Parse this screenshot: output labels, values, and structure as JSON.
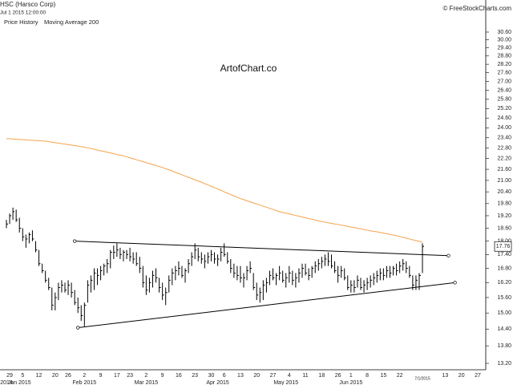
{
  "chart_data": {
    "type": "ohlc",
    "title": "HSC (Harsco Corp)",
    "subtitle": "Jul 1 2015 12:00:00",
    "source": "© FreeStockCharts.com",
    "watermark": "ArtofChart.co",
    "price_name": "Price History",
    "color": "#000000",
    "log_scale": true,
    "grid": false,
    "highlight_label": "7/1/2015",
    "categories": [
      null,
      "29",
      null,
      null,
      null,
      "5",
      null,
      null,
      null,
      null,
      "12",
      null,
      null,
      null,
      null,
      "20",
      null,
      null,
      null,
      "26",
      null,
      null,
      null,
      null,
      "2",
      null,
      null,
      null,
      null,
      "9",
      null,
      null,
      null,
      null,
      "17",
      null,
      null,
      null,
      "23",
      null,
      null,
      null,
      null,
      "2",
      null,
      null,
      null,
      null,
      "9",
      null,
      null,
      null,
      null,
      "16",
      null,
      null,
      null,
      null,
      "23",
      null,
      null,
      null,
      null,
      "30",
      null,
      null,
      null,
      "6",
      null,
      null,
      null,
      null,
      "13",
      null,
      null,
      null,
      null,
      "20",
      null,
      null,
      null,
      null,
      "27",
      null,
      null,
      null,
      null,
      "4",
      null,
      null,
      null,
      null,
      "11",
      null,
      null,
      null,
      null,
      "18",
      null,
      null,
      null,
      null,
      "26",
      null,
      null,
      null,
      "1",
      null,
      null,
      null,
      null,
      "8",
      null,
      null,
      null,
      null,
      "15",
      null,
      null,
      null,
      null,
      "22",
      null,
      null,
      null,
      null,
      null,
      null,
      null,
      null,
      null,
      null,
      null,
      null,
      null,
      "13",
      null,
      null,
      null,
      null,
      "20",
      null,
      null,
      null,
      null,
      "27"
    ],
    "months": [
      "2014",
      null,
      null,
      null,
      "Jan 2015",
      null,
      null,
      null,
      null,
      null,
      null,
      null,
      null,
      null,
      null,
      null,
      null,
      null,
      null,
      null,
      null,
      null,
      null,
      null,
      "Feb 2015",
      null,
      null,
      null,
      null,
      null,
      null,
      null,
      null,
      null,
      null,
      null,
      null,
      null,
      null,
      null,
      null,
      null,
      null,
      "Mar 2015",
      null,
      null,
      null,
      null,
      null,
      null,
      null,
      null,
      null,
      null,
      null,
      null,
      null,
      null,
      null,
      null,
      null,
      null,
      null,
      null,
      null,
      "Apr 2015",
      null,
      null,
      null,
      null,
      null,
      null,
      null,
      null,
      null,
      null,
      null,
      null,
      null,
      null,
      null,
      null,
      null,
      null,
      null,
      null,
      "May 2015",
      null,
      null,
      null,
      null,
      null,
      null,
      null,
      null,
      null,
      null,
      null,
      null,
      null,
      null,
      null,
      null,
      null,
      null,
      null,
      "Jun 2015",
      null,
      null,
      null,
      null,
      null,
      null,
      null,
      null,
      null,
      null,
      null,
      null,
      null,
      null,
      null,
      null,
      null,
      null,
      null,
      null,
      null,
      null,
      null,
      null,
      null,
      null,
      null,
      null,
      null,
      null,
      null,
      null,
      null,
      null,
      null,
      null,
      null,
      null,
      null
    ],
    "high": [
      19.0,
      19.3,
      19.6,
      19.5,
      19.1,
      18.6,
      18.3,
      18.4,
      18.5,
      18.0,
      17.6,
      17.0,
      16.7,
      16.4,
      16.0,
      15.8,
      16.2,
      16.3,
      16.2,
      16.3,
      16.2,
      15.9,
      15.6,
      15.3,
      15.4,
      16.3,
      16.5,
      16.8,
      16.8,
      16.9,
      17.0,
      17.2,
      17.6,
      17.8,
      17.9,
      17.7,
      17.6,
      17.6,
      17.7,
      17.5,
      17.5,
      17.3,
      16.9,
      16.5,
      16.4,
      16.7,
      16.8,
      16.4,
      16.2,
      16.0,
      16.5,
      16.8,
      16.9,
      17.1,
      16.9,
      16.8,
      17.2,
      17.5,
      17.9,
      17.7,
      17.5,
      17.4,
      17.5,
      17.6,
      17.5,
      17.4,
      17.7,
      17.9,
      17.5,
      17.2,
      17.0,
      16.9,
      16.9,
      16.6,
      16.9,
      17.1,
      16.6,
      16.2,
      16.0,
      16.3,
      16.4,
      16.7,
      16.8,
      16.6,
      16.9,
      16.7,
      16.6,
      16.9,
      16.7,
      16.6,
      16.8,
      17.0,
      17.0,
      16.8,
      16.9,
      17.1,
      17.2,
      17.3,
      17.4,
      17.5,
      17.4,
      17.1,
      16.9,
      16.9,
      16.8,
      16.5,
      16.3,
      16.3,
      16.5,
      16.4,
      16.3,
      16.4,
      16.5,
      16.6,
      16.7,
      16.8,
      16.8,
      16.9,
      16.9,
      16.9,
      17.0,
      17.1,
      17.2,
      17.1,
      16.9,
      16.5,
      16.5,
      16.6,
      17.9,
      null,
      null,
      null,
      null,
      null,
      null,
      null,
      null,
      null,
      null,
      null,
      null,
      null,
      null,
      null,
      null,
      null
    ],
    "low": [
      18.6,
      18.8,
      19.0,
      18.9,
      18.4,
      18.0,
      17.7,
      17.9,
      18.0,
      17.5,
      16.9,
      16.6,
      16.2,
      15.9,
      15.1,
      15.1,
      15.5,
      15.8,
      15.8,
      15.7,
      15.6,
      15.3,
      15.0,
      14.7,
      14.5,
      15.4,
      15.8,
      15.9,
      16.1,
      16.3,
      16.5,
      16.6,
      16.8,
      17.2,
      17.3,
      17.2,
      17.1,
      17.2,
      17.1,
      17.0,
      16.9,
      16.6,
      16.0,
      15.7,
      15.8,
      16.0,
      16.2,
      15.8,
      15.5,
      15.3,
      15.8,
      16.1,
      16.3,
      16.5,
      16.4,
      16.2,
      16.6,
      16.9,
      17.2,
      17.1,
      17.0,
      16.8,
      17.0,
      17.1,
      17.0,
      16.9,
      17.1,
      17.3,
      17.0,
      16.6,
      16.4,
      16.3,
      16.2,
      16.0,
      16.3,
      16.6,
      15.9,
      15.5,
      15.4,
      15.5,
      15.8,
      16.1,
      16.3,
      16.1,
      16.3,
      16.2,
      16.0,
      16.2,
      16.1,
      16.0,
      16.2,
      16.4,
      16.5,
      16.3,
      16.4,
      16.6,
      16.7,
      16.8,
      16.9,
      16.9,
      16.8,
      16.6,
      16.2,
      16.4,
      16.3,
      15.9,
      15.8,
      15.8,
      16.0,
      15.9,
      15.8,
      15.9,
      16.0,
      16.1,
      16.2,
      16.3,
      16.3,
      16.4,
      16.4,
      16.5,
      16.5,
      16.6,
      16.7,
      16.6,
      16.4,
      15.9,
      15.9,
      15.9,
      16.6,
      null,
      null,
      null,
      null,
      null,
      null,
      null,
      null,
      null,
      null,
      null,
      null,
      null,
      null,
      null,
      null,
      null
    ],
    "close": [
      18.8,
      19.2,
      19.4,
      19.0,
      18.6,
      18.2,
      18.1,
      18.3,
      18.1,
      17.6,
      17.0,
      16.7,
      16.3,
      16.0,
      15.3,
      15.6,
      16.0,
      16.1,
      15.9,
      16.1,
      15.8,
      15.4,
      15.2,
      14.9,
      15.3,
      16.1,
      16.3,
      16.6,
      16.5,
      16.7,
      16.9,
      17.0,
      17.5,
      17.5,
      17.6,
      17.4,
      17.5,
      17.4,
      17.3,
      17.2,
      17.0,
      16.8,
      16.2,
      15.9,
      16.2,
      16.5,
      16.4,
      16.0,
      15.7,
      15.8,
      16.3,
      16.6,
      16.7,
      16.8,
      16.5,
      16.7,
      17.0,
      17.3,
      17.6,
      17.3,
      17.2,
      17.1,
      17.3,
      17.4,
      17.2,
      17.2,
      17.5,
      17.4,
      17.1,
      16.8,
      16.6,
      16.5,
      16.4,
      16.4,
      16.7,
      16.8,
      16.0,
      15.7,
      15.8,
      16.1,
      16.2,
      16.5,
      16.4,
      16.5,
      16.6,
      16.3,
      16.4,
      16.6,
      16.3,
      16.4,
      16.6,
      16.8,
      16.6,
      16.5,
      16.8,
      16.9,
      17.0,
      17.1,
      17.2,
      17.1,
      16.9,
      16.7,
      16.5,
      16.7,
      16.4,
      16.0,
      16.1,
      16.0,
      16.3,
      16.0,
      16.1,
      16.2,
      16.3,
      16.4,
      16.5,
      16.6,
      16.5,
      16.7,
      16.6,
      16.8,
      16.7,
      16.9,
      17.0,
      16.8,
      16.5,
      16.1,
      16.3,
      16.5,
      17.76,
      null,
      null,
      null,
      null,
      null,
      null,
      null,
      null,
      null,
      null,
      null,
      null,
      null,
      null,
      null,
      null,
      null
    ],
    "moving_average": {
      "name": "Moving Average 200",
      "color": "#f5a24c",
      "values": [
        23.35,
        23.34,
        23.33,
        23.31,
        23.3,
        23.29,
        23.28,
        23.26,
        23.25,
        23.24,
        23.23,
        23.21,
        23.2,
        23.17,
        23.14,
        23.11,
        23.08,
        23.05,
        23.03,
        23.0,
        22.97,
        22.94,
        22.91,
        22.88,
        22.85,
        22.81,
        22.77,
        22.73,
        22.68,
        22.64,
        22.6,
        22.56,
        22.52,
        22.48,
        22.43,
        22.39,
        22.35,
        22.3,
        22.24,
        22.19,
        22.13,
        22.08,
        22.03,
        21.97,
        21.92,
        21.86,
        21.81,
        21.75,
        21.7,
        21.63,
        21.57,
        21.5,
        21.43,
        21.37,
        21.3,
        21.23,
        21.17,
        21.1,
        21.03,
        20.97,
        20.9,
        20.83,
        20.76,
        20.69,
        20.62,
        20.55,
        20.48,
        20.4,
        20.33,
        20.26,
        20.19,
        20.12,
        20.05,
        20.0,
        19.94,
        19.89,
        19.83,
        19.78,
        19.73,
        19.67,
        19.62,
        19.56,
        19.51,
        19.45,
        19.4,
        19.36,
        19.33,
        19.29,
        19.25,
        19.21,
        19.18,
        19.14,
        19.1,
        19.06,
        19.03,
        18.99,
        18.95,
        18.92,
        18.89,
        18.86,
        18.83,
        18.8,
        18.78,
        18.75,
        18.72,
        18.69,
        18.66,
        18.63,
        18.6,
        18.57,
        18.54,
        18.51,
        18.48,
        18.45,
        18.43,
        18.4,
        18.37,
        18.34,
        18.31,
        18.28,
        18.25,
        18.21,
        18.18,
        18.14,
        18.1,
        18.06,
        18.03,
        17.99,
        17.95,
        null,
        null,
        null,
        null,
        null,
        null,
        null,
        null,
        null,
        null,
        null,
        null,
        null,
        null,
        null,
        null,
        null
      ]
    },
    "trendlines": [
      {
        "color": "#000000",
        "x": [
          21,
          136
        ],
        "values": [
          18.0,
          17.35
        ]
      },
      {
        "color": "#000000",
        "x": [
          22,
          138
        ],
        "values": [
          14.45,
          16.2
        ]
      }
    ],
    "ylim": [
      13.2,
      30.6
    ],
    "yticks": [
      {
        "value": 13.2,
        "label": "13.20"
      },
      {
        "value": 13.8,
        "label": "13.80"
      },
      {
        "value": 14.4,
        "label": "14.40"
      },
      {
        "value": 15.0,
        "label": "15.00"
      },
      {
        "value": 15.6,
        "label": "15.60"
      },
      {
        "value": 16.2,
        "label": "16.20"
      },
      {
        "value": 16.8,
        "label": "16.80"
      },
      {
        "value": 17.4,
        "label": "17.40"
      },
      {
        "value": 18.0,
        "label": "18.00"
      },
      {
        "value": 18.6,
        "label": "18.60"
      },
      {
        "value": 19.2,
        "label": "19.20"
      },
      {
        "value": 19.8,
        "label": "19.80"
      },
      {
        "value": 20.4,
        "label": "20.40"
      },
      {
        "value": 21.0,
        "label": "21.00"
      },
      {
        "value": 21.6,
        "label": "21.60"
      },
      {
        "value": 22.2,
        "label": "22.20"
      },
      {
        "value": 22.8,
        "label": "22.80"
      },
      {
        "value": 23.4,
        "label": "23.40"
      },
      {
        "value": 24.0,
        "label": "24.00"
      },
      {
        "value": 24.6,
        "label": "24.60"
      },
      {
        "value": 25.2,
        "label": "25.20"
      },
      {
        "value": 25.8,
        "label": "25.80"
      },
      {
        "value": 26.4,
        "label": "26.40"
      },
      {
        "value": 27.0,
        "label": "27.00"
      },
      {
        "value": 27.6,
        "label": "27.60"
      },
      {
        "value": 28.2,
        "label": "28.20"
      },
      {
        "value": 28.8,
        "label": "28.80"
      },
      {
        "value": 29.4,
        "label": "29.40"
      },
      {
        "value": 30.0,
        "label": "30.00"
      },
      {
        "value": 30.6,
        "label": "30.60"
      }
    ]
  }
}
